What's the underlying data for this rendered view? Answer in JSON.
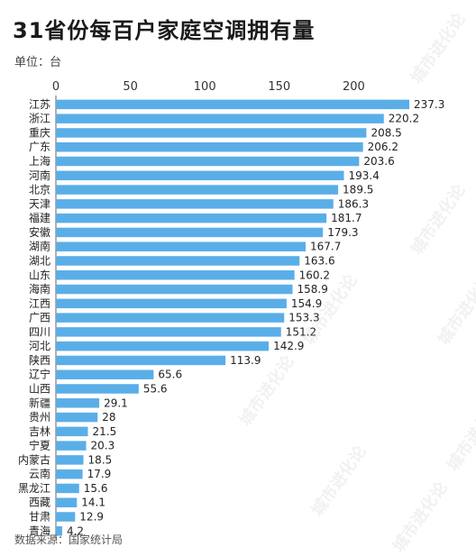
{
  "header": {
    "title": "31省份每百户家庭空调拥有量",
    "unit": "单位：台"
  },
  "footer": {
    "source": "数据来源：国家统计局"
  },
  "watermark": {
    "text": "城市进化论"
  },
  "colors": {
    "bar": "#5aaee8",
    "axis": "#666666"
  },
  "chart_data": {
    "type": "bar",
    "orientation": "horizontal",
    "title": "31省份每百户家庭空调拥有量",
    "xlabel": "",
    "ylabel": "",
    "xlim": [
      0,
      240
    ],
    "x_ticks": [
      0,
      50,
      100,
      150,
      200
    ],
    "grid": false,
    "categories": [
      "江苏",
      "浙江",
      "重庆",
      "广东",
      "上海",
      "河南",
      "北京",
      "天津",
      "福建",
      "安徽",
      "湖南",
      "湖北",
      "山东",
      "海南",
      "江西",
      "广西",
      "四川",
      "河北",
      "陕西",
      "辽宁",
      "山西",
      "新疆",
      "贵州",
      "吉林",
      "宁夏",
      "内蒙古",
      "云南",
      "黑龙江",
      "西藏",
      "甘肃",
      "青海"
    ],
    "values": [
      237.3,
      220.2,
      208.5,
      206.2,
      203.6,
      193.4,
      189.5,
      186.3,
      181.7,
      179.3,
      167.7,
      163.6,
      160.2,
      158.9,
      154.9,
      153.3,
      151.2,
      142.9,
      113.9,
      65.6,
      55.6,
      29.1,
      28,
      21.5,
      20.3,
      18.5,
      17.9,
      15.6,
      14.1,
      12.9,
      4.2
    ],
    "value_labels": [
      "237.3",
      "220.2",
      "208.5",
      "206.2",
      "203.6",
      "193.4",
      "189.5",
      "186.3",
      "181.7",
      "179.3",
      "167.7",
      "163.6",
      "160.2",
      "158.9",
      "154.9",
      "153.3",
      "151.2",
      "142.9",
      "113.9",
      "65.6",
      "55.6",
      "29.1",
      "28",
      "21.5",
      "20.3",
      "18.5",
      "17.9",
      "15.6",
      "14.1",
      "12.9",
      "4.2"
    ]
  }
}
